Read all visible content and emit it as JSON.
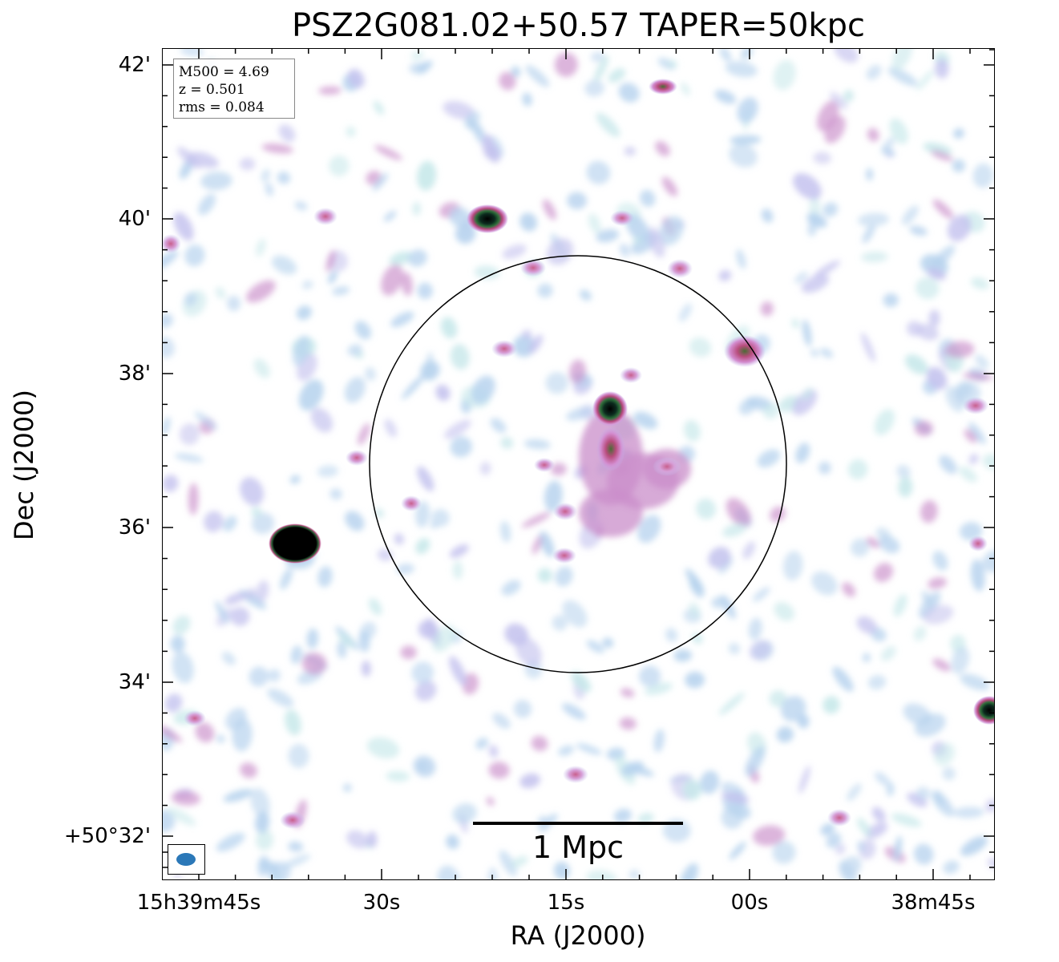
{
  "title": "PSZ2G081.02+50.57 TAPER=50kpc",
  "axes": {
    "xlabel": "RA (J2000)",
    "ylabel": "Dec (J2000)",
    "x_ticks": [
      "15h39m45s",
      "30s",
      "15s",
      "00s",
      "38m45s"
    ],
    "y_ticks": [
      "42'",
      "40'",
      "38'",
      "36'",
      "34'",
      "+50°32'"
    ]
  },
  "info": {
    "mass": "M500 = 4.69",
    "redshift": "z = 0.501",
    "rms": "rms = 0.084"
  },
  "scale_bar": {
    "label": "1 Mpc"
  },
  "colors": {
    "beam": "#2b78b8",
    "faint_emission": "#b7d3ee",
    "mid_emission": "#c98ec9",
    "bright_emission": "#c0427e",
    "peak_emission": "#000000",
    "circle": "#000000"
  },
  "map": {
    "colormap": "cubehelix-like (white → blue → purple → pink → green → black)",
    "compact_sources": 26,
    "circle": "cluster R500 aperture"
  }
}
